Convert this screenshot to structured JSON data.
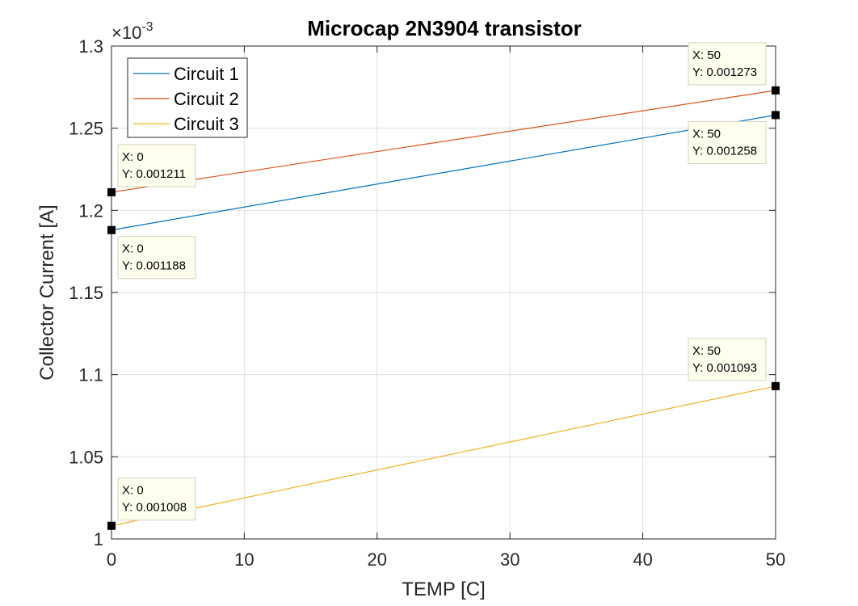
{
  "chart_data": {
    "type": "line",
    "title": "Microcap 2N3904 transistor",
    "xlabel": "TEMP [C]",
    "ylabel": "Collector Current [A]",
    "xlim": [
      0,
      50
    ],
    "ylim": [
      0.001,
      0.0013
    ],
    "x_ticks": [
      0,
      10,
      20,
      30,
      40,
      50
    ],
    "x_tick_labels": [
      "0",
      "10",
      "20",
      "30",
      "40",
      "50"
    ],
    "y_ticks": [
      0.001,
      0.00105,
      0.0011,
      0.00115,
      0.0012,
      0.00125,
      0.0013
    ],
    "y_tick_labels": [
      "1",
      "1.05",
      "1.1",
      "1.15",
      "1.2",
      "1.25",
      "1.3"
    ],
    "y_exponent": {
      "base": "×10",
      "power": "-3"
    },
    "grid": true,
    "legend_position": "top-left",
    "series": [
      {
        "name": "Circuit 1",
        "color": "#0072BD",
        "x": [
          0,
          50
        ],
        "y": [
          0.001188,
          0.001258
        ]
      },
      {
        "name": "Circuit 2",
        "color": "#D95319",
        "x": [
          0,
          50
        ],
        "y": [
          0.001211,
          0.001273
        ]
      },
      {
        "name": "Circuit 3",
        "color": "#EDB120",
        "x": [
          0,
          50
        ],
        "y": [
          0.001008,
          0.001093
        ]
      }
    ],
    "datatips": [
      {
        "x": 0,
        "y": 0.001211,
        "x_text": "X: 0",
        "y_text": "Y: 0.001211",
        "placement": "above-right"
      },
      {
        "x": 0,
        "y": 0.001188,
        "x_text": "X: 0",
        "y_text": "Y: 0.001188",
        "placement": "below-right"
      },
      {
        "x": 0,
        "y": 0.001008,
        "x_text": "X: 0",
        "y_text": "Y: 0.001008",
        "placement": "above-right"
      },
      {
        "x": 50,
        "y": 0.001273,
        "x_text": "X: 50",
        "y_text": "Y: 0.001273",
        "placement": "above-left"
      },
      {
        "x": 50,
        "y": 0.001258,
        "x_text": "X: 50",
        "y_text": "Y: 0.001258",
        "placement": "below-left"
      },
      {
        "x": 50,
        "y": 0.001093,
        "x_text": "X: 50",
        "y_text": "Y: 0.001093",
        "placement": "above-left"
      }
    ]
  }
}
